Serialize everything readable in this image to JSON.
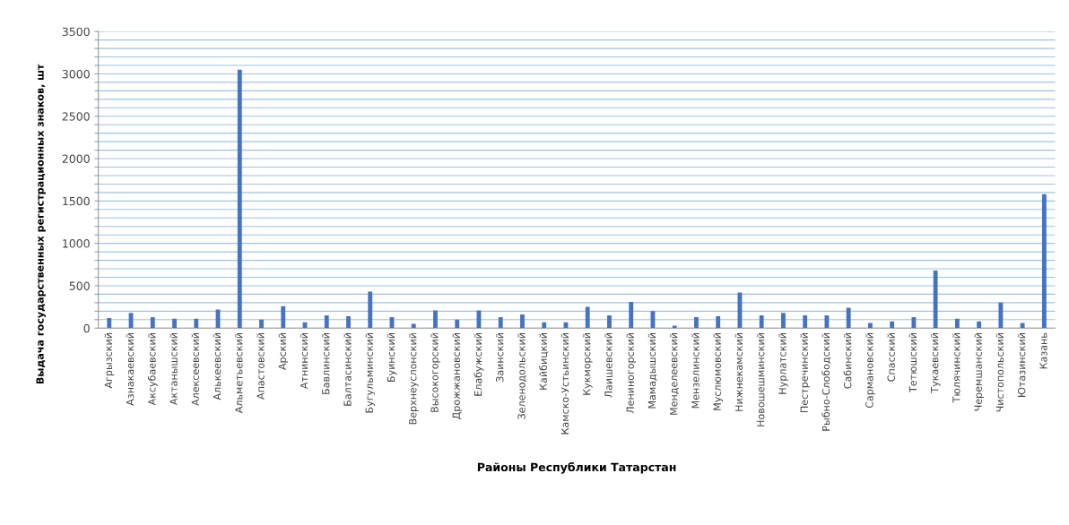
{
  "chart_data": {
    "type": "bar",
    "xlabel": "Районы Республики Татарстан",
    "ylabel": "Выдача государственных регистрационных знаков, шт",
    "categories": [
      "Агрызский",
      "Азнакаевский",
      "Аксубаевский",
      "Актанышский",
      "Алексеевский",
      "Алькеевский",
      "Альметьевский",
      "Апастовский",
      "Арский",
      "Атнинский",
      "Бавлинский",
      "Балтасинский",
      "Бугульминский",
      "Буинский",
      "Верхнеуслонский",
      "Высокогорский",
      "Дрожжановский",
      "Елабужский",
      "Заинский",
      "Зеленодольский",
      "Кайбицкий",
      "Камско-Устьинский",
      "Кукморский",
      "Лаишевский",
      "Лениногорский",
      "Мамадышский",
      "Менделеевский",
      "Мензелинский",
      "Муслюмовский",
      "Нижнекамский",
      "Новошешминский",
      "Нурлатский",
      "Пестречинский",
      "Рыбно-Слободский",
      "Сабинский",
      "Сармановский",
      "Спасский",
      "Тетюшский",
      "Тукаевский",
      "Тюлячинский",
      "Черемшанский",
      "Чистопольский",
      "Ютазинский",
      "Казань"
    ],
    "values": [
      120,
      180,
      130,
      110,
      110,
      220,
      3050,
      100,
      260,
      70,
      150,
      140,
      430,
      130,
      50,
      210,
      100,
      210,
      130,
      160,
      70,
      70,
      250,
      150,
      310,
      200,
      30,
      130,
      140,
      420,
      150,
      180,
      150,
      150,
      240,
      60,
      80,
      130,
      680,
      110,
      80,
      300,
      60,
      1580
    ],
    "color": "#4472c4",
    "ylim": [
      0,
      3500
    ],
    "yticks": [
      0,
      {
        "value": 100,
        "label": null
      },
      {
        "value": 200,
        "label": null
      },
      {
        "value": 300,
        "label": null
      },
      {
        "value": 400,
        "label": null
      },
      500,
      {
        "value": 600,
        "label": null
      },
      {
        "value": 700,
        "label": null
      },
      {
        "value": 800,
        "label": null
      },
      {
        "value": 900,
        "label": null
      },
      1000,
      {
        "value": 1100,
        "label": null
      },
      {
        "value": 1200,
        "label": null
      },
      {
        "value": 1300,
        "label": null
      },
      {
        "value": 1400,
        "label": null
      },
      1500,
      {
        "value": 1600,
        "label": null
      },
      {
        "value": 1700,
        "label": null
      },
      {
        "value": 1800,
        "label": null
      },
      {
        "value": 1900,
        "label": null
      },
      2000,
      {
        "value": 2100,
        "label": null
      },
      {
        "value": 2200,
        "label": null
      },
      {
        "value": 2300,
        "label": null
      },
      {
        "value": 2400,
        "label": null
      },
      2500,
      {
        "value": 2600,
        "label": null
      },
      {
        "value": 2700,
        "label": null
      },
      {
        "value": 2800,
        "label": null
      },
      {
        "value": 2900,
        "label": null
      },
      3000,
      {
        "value": 3100,
        "label": null
      },
      {
        "value": 3200,
        "label": null
      },
      {
        "value": 3300,
        "label": null
      },
      {
        "value": 3400,
        "label": null
      },
      3500
    ],
    "grid": "y",
    "legend": false
  }
}
